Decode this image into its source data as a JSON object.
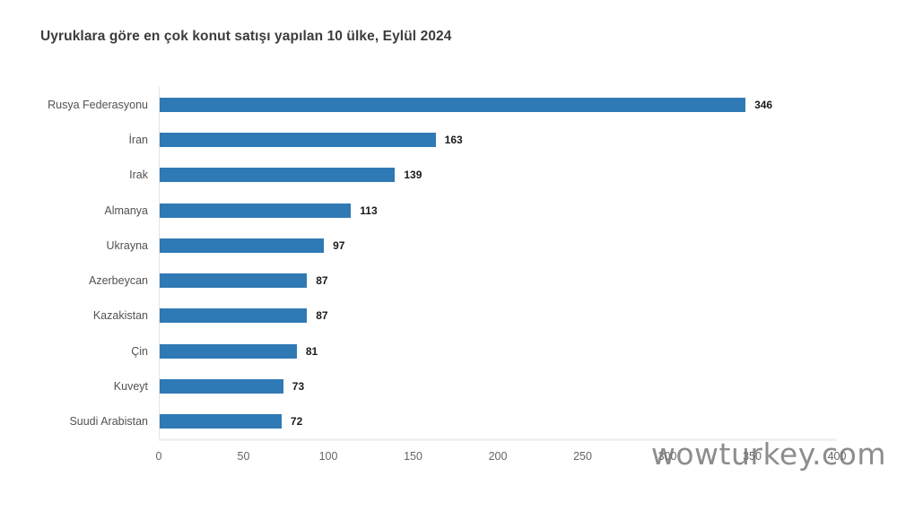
{
  "page": {
    "background": "#FFFFFF",
    "title": "Uyruklara göre en çok konut satışı yapılan 10 ülke, Eylül 2024",
    "watermark": "wowturkey.com"
  },
  "colors": {
    "bar": "#2F79B5",
    "title_text": "#3C3C3C",
    "category_text": "#525252",
    "value_text": "#1B1B1B",
    "tick_text": "#666666",
    "axis_line": "#E3E3E3",
    "baseline": "#F2F2F2",
    "watermark_text": "#6E6E6E"
  },
  "chart_data": {
    "type": "bar",
    "orientation": "horizontal",
    "title": "Uyruklara göre en çok konut satışı yapılan 10 ülke, Eylül 2024",
    "categories": [
      "Rusya Federasyonu",
      "İran",
      "Irak",
      "Almanya",
      "Ukrayna",
      "Azerbeycan",
      "Kazakistan",
      "Çin",
      "Kuveyt",
      "Suudi Arabistan"
    ],
    "values": [
      346,
      163,
      139,
      113,
      97,
      87,
      87,
      81,
      73,
      72
    ],
    "xlabel": "",
    "ylabel": "",
    "xlim": [
      0,
      400
    ],
    "x_ticks": [
      0,
      50,
      100,
      150,
      200,
      250,
      300,
      350,
      400
    ],
    "grid": false,
    "value_labels": true,
    "legend": false
  }
}
